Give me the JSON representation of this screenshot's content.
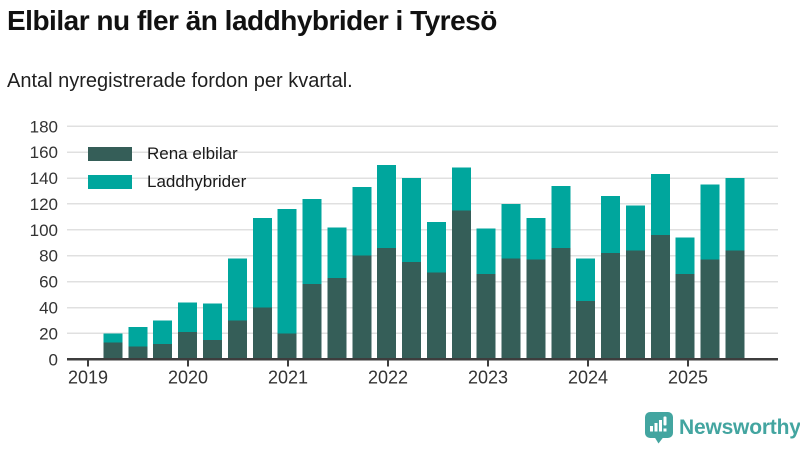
{
  "title": "Elbilar nu fler än laddhybrider i Tyresö",
  "subtitle": "Antal nyregistrerade fordon per kvartal.",
  "legend": {
    "items": [
      {
        "label": "Rena elbilar",
        "color": "#355e58"
      },
      {
        "label": "Laddhybrider",
        "color": "#00a69d"
      }
    ]
  },
  "footer": {
    "brand": "Newsworthy",
    "brand_color": "#43a5a0",
    "logo_icon": "speech-bubble-bar-chart"
  },
  "theme": {
    "background": "#ffffff",
    "grid_color": "#e0e0e0",
    "axis_color": "#3d3d3d",
    "tick_text_color": "#333333"
  },
  "chart_data": {
    "type": "bar",
    "stacked": true,
    "grid": true,
    "legend_position": "top-left",
    "ylim": [
      0,
      180
    ],
    "y_ticks": [
      0,
      20,
      40,
      60,
      80,
      100,
      120,
      140,
      160,
      180
    ],
    "x_tick_labels": [
      "2019",
      "2020",
      "2021",
      "2022",
      "2023",
      "2024",
      "2025"
    ],
    "categories": [
      "2019 Q2",
      "2019 Q3",
      "2019 Q4",
      "2020 Q1",
      "2020 Q2",
      "2020 Q3",
      "2020 Q4",
      "2021 Q1",
      "2021 Q2",
      "2021 Q3",
      "2021 Q4",
      "2022 Q1",
      "2022 Q2",
      "2022 Q3",
      "2022 Q4",
      "2023 Q1",
      "2023 Q2",
      "2023 Q3",
      "2023 Q4",
      "2024 Q1",
      "2024 Q2",
      "2024 Q3",
      "2024 Q4",
      "2025 Q1",
      "2025 Q2",
      "2025 Q3"
    ],
    "series": [
      {
        "name": "Rena elbilar",
        "color": "#355e58",
        "values": [
          13,
          10,
          12,
          21,
          15,
          30,
          40,
          20,
          58,
          63,
          80,
          86,
          75,
          67,
          115,
          66,
          78,
          77,
          86,
          45,
          82,
          84,
          96,
          66,
          77,
          84
        ]
      },
      {
        "name": "Laddhybrider",
        "color": "#00a69d",
        "values": [
          7,
          15,
          18,
          23,
          28,
          48,
          69,
          96,
          66,
          39,
          53,
          64,
          65,
          39,
          33,
          35,
          42,
          32,
          48,
          33,
          44,
          35,
          47,
          28,
          58,
          56
        ]
      }
    ]
  }
}
